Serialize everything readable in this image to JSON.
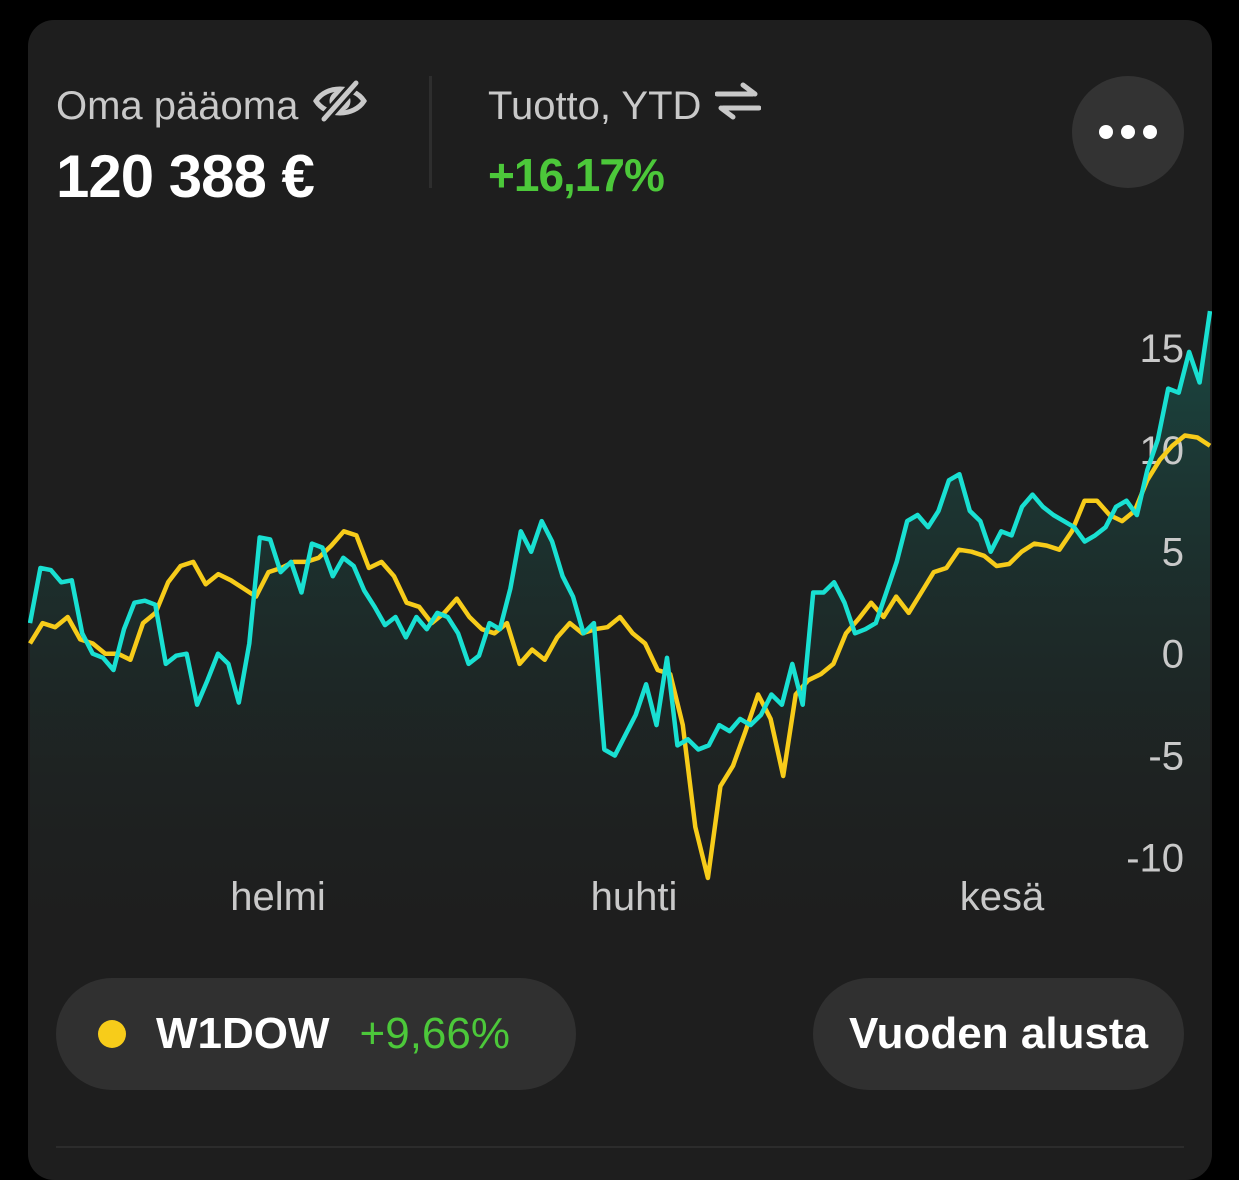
{
  "header": {
    "equity_label": "Oma pääoma",
    "equity_value": "120 388 €",
    "equity_icon": "eye-off-icon",
    "return_label": "Tuotto, YTD",
    "return_value": "+16,17%",
    "return_icon": "swap-arrows-icon",
    "more_icon": "more-dots-icon"
  },
  "colors": {
    "background": "#1e1e1e",
    "portfolio_line": "#19e0d2",
    "benchmark_line": "#f7cc1a",
    "positive": "#4cc83a",
    "axis_text": "#c9c9c9"
  },
  "chart_data": {
    "type": "line",
    "ylim": [
      -11,
      17
    ],
    "y_ticks": [
      "15",
      "10",
      "5",
      "0",
      "-5",
      "-10"
    ],
    "x_labels": [
      "helmi",
      "huhti",
      "kesä"
    ],
    "y_axis_position": "right",
    "grid": false,
    "series": [
      {
        "name": "",
        "color": "#19e0d2",
        "values": [
          1.5,
          4.2,
          4.1,
          3.5,
          3.6,
          1.0,
          0.0,
          -0.2,
          -0.8,
          1.2,
          2.5,
          2.6,
          2.4,
          -0.5,
          -0.1,
          0.0,
          -2.5,
          -1.3,
          0.0,
          -0.5,
          -2.4,
          0.5,
          5.7,
          5.6,
          4.0,
          4.5,
          3.0,
          5.4,
          5.2,
          3.8,
          4.7,
          4.3,
          3.1,
          2.3,
          1.4,
          1.8,
          0.8,
          1.8,
          1.2,
          2.0,
          1.8,
          1.0,
          -0.5,
          -0.1,
          1.5,
          1.2,
          3.2,
          6.0,
          5.0,
          6.5,
          5.5,
          3.8,
          2.8,
          1.0,
          1.5,
          -4.7,
          -5.0,
          -4.0,
          -3.0,
          -1.5,
          -3.5,
          -0.2,
          -4.5,
          -4.2,
          -4.7,
          -4.5,
          -3.5,
          -3.8,
          -3.2,
          -3.5,
          -3.0,
          -2.0,
          -2.5,
          -0.5,
          -2.5,
          3.0,
          3.0,
          3.5,
          2.5,
          1.0,
          1.2,
          1.5,
          3.0,
          4.5,
          6.5,
          6.8,
          6.2,
          7.0,
          8.5,
          8.8,
          7.0,
          6.5,
          5.0,
          6.0,
          5.8,
          7.2,
          7.8,
          7.2,
          6.8,
          6.5,
          6.2,
          5.5,
          5.8,
          6.2,
          7.2,
          7.5,
          6.8,
          9.0,
          10.5,
          13.0,
          12.8,
          14.8,
          13.3,
          16.8
        ]
      },
      {
        "name": "W1DOW",
        "color": "#f7cc1a",
        "values": [
          0.5,
          1.5,
          1.3,
          1.8,
          0.7,
          0.5,
          0.0,
          0.0,
          -0.3,
          1.5,
          2.0,
          3.5,
          4.3,
          4.5,
          3.4,
          3.9,
          3.6,
          3.2,
          2.8,
          4.0,
          4.2,
          4.5,
          4.5,
          4.7,
          5.3,
          6.0,
          5.8,
          4.2,
          4.5,
          3.8,
          2.5,
          2.3,
          1.5,
          2.0,
          2.7,
          1.8,
          1.2,
          1.0,
          1.5,
          -0.5,
          0.2,
          -0.3,
          0.8,
          1.5,
          1.0,
          1.2,
          1.3,
          1.8,
          1.0,
          0.5,
          -0.8,
          -1.0,
          -3.5,
          -8.5,
          -11.0,
          -6.5,
          -5.5,
          -3.8,
          -2.0,
          -3.2,
          -6.0,
          -2.0,
          -1.3,
          -1.0,
          -0.5,
          1.0,
          1.7,
          2.5,
          1.8,
          2.8,
          2.0,
          3.0,
          4.0,
          4.2,
          5.1,
          5.0,
          4.8,
          4.3,
          4.4,
          5.0,
          5.4,
          5.3,
          5.1,
          6.0,
          7.5,
          7.5,
          6.8,
          6.5,
          7.0,
          8.5,
          9.5,
          10.2,
          10.7,
          10.6,
          10.2
        ]
      }
    ]
  },
  "bottom": {
    "benchmark_name": "W1DOW",
    "benchmark_value": "+9,66%",
    "period_label": "Vuoden alusta"
  }
}
